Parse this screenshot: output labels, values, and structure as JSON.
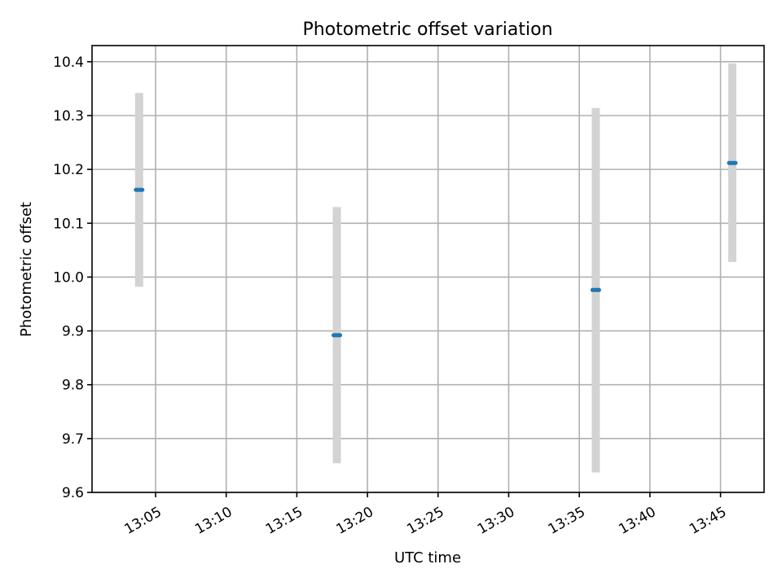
{
  "chart_data": {
    "type": "scatter",
    "title": "Photometric offset variation",
    "xlabel": "UTC time",
    "ylabel": "Photometric offset",
    "xlim": [
      "13:00:30",
      "13:48:05"
    ],
    "ylim": [
      9.6,
      10.43
    ],
    "x_ticks": [
      "13:05",
      "13:10",
      "13:15",
      "13:20",
      "13:25",
      "13:30",
      "13:35",
      "13:40",
      "13:45"
    ],
    "y_ticks": [
      "9.6",
      "9.7",
      "9.8",
      "9.9",
      "10.0",
      "10.1",
      "10.2",
      "10.3",
      "10.4"
    ],
    "grid": true,
    "series": [
      {
        "x": [
          "13:03:50",
          "13:17:50",
          "13:36:10",
          "13:45:50"
        ],
        "y": [
          10.162,
          9.892,
          9.976,
          10.212
        ],
        "yerr_low": [
          9.982,
          9.654,
          9.637,
          10.028
        ],
        "yerr_high": [
          10.342,
          10.13,
          10.314,
          10.397
        ]
      }
    ],
    "marker_color": "#1f77b4",
    "errorbar_color": "#d3d3d3"
  }
}
